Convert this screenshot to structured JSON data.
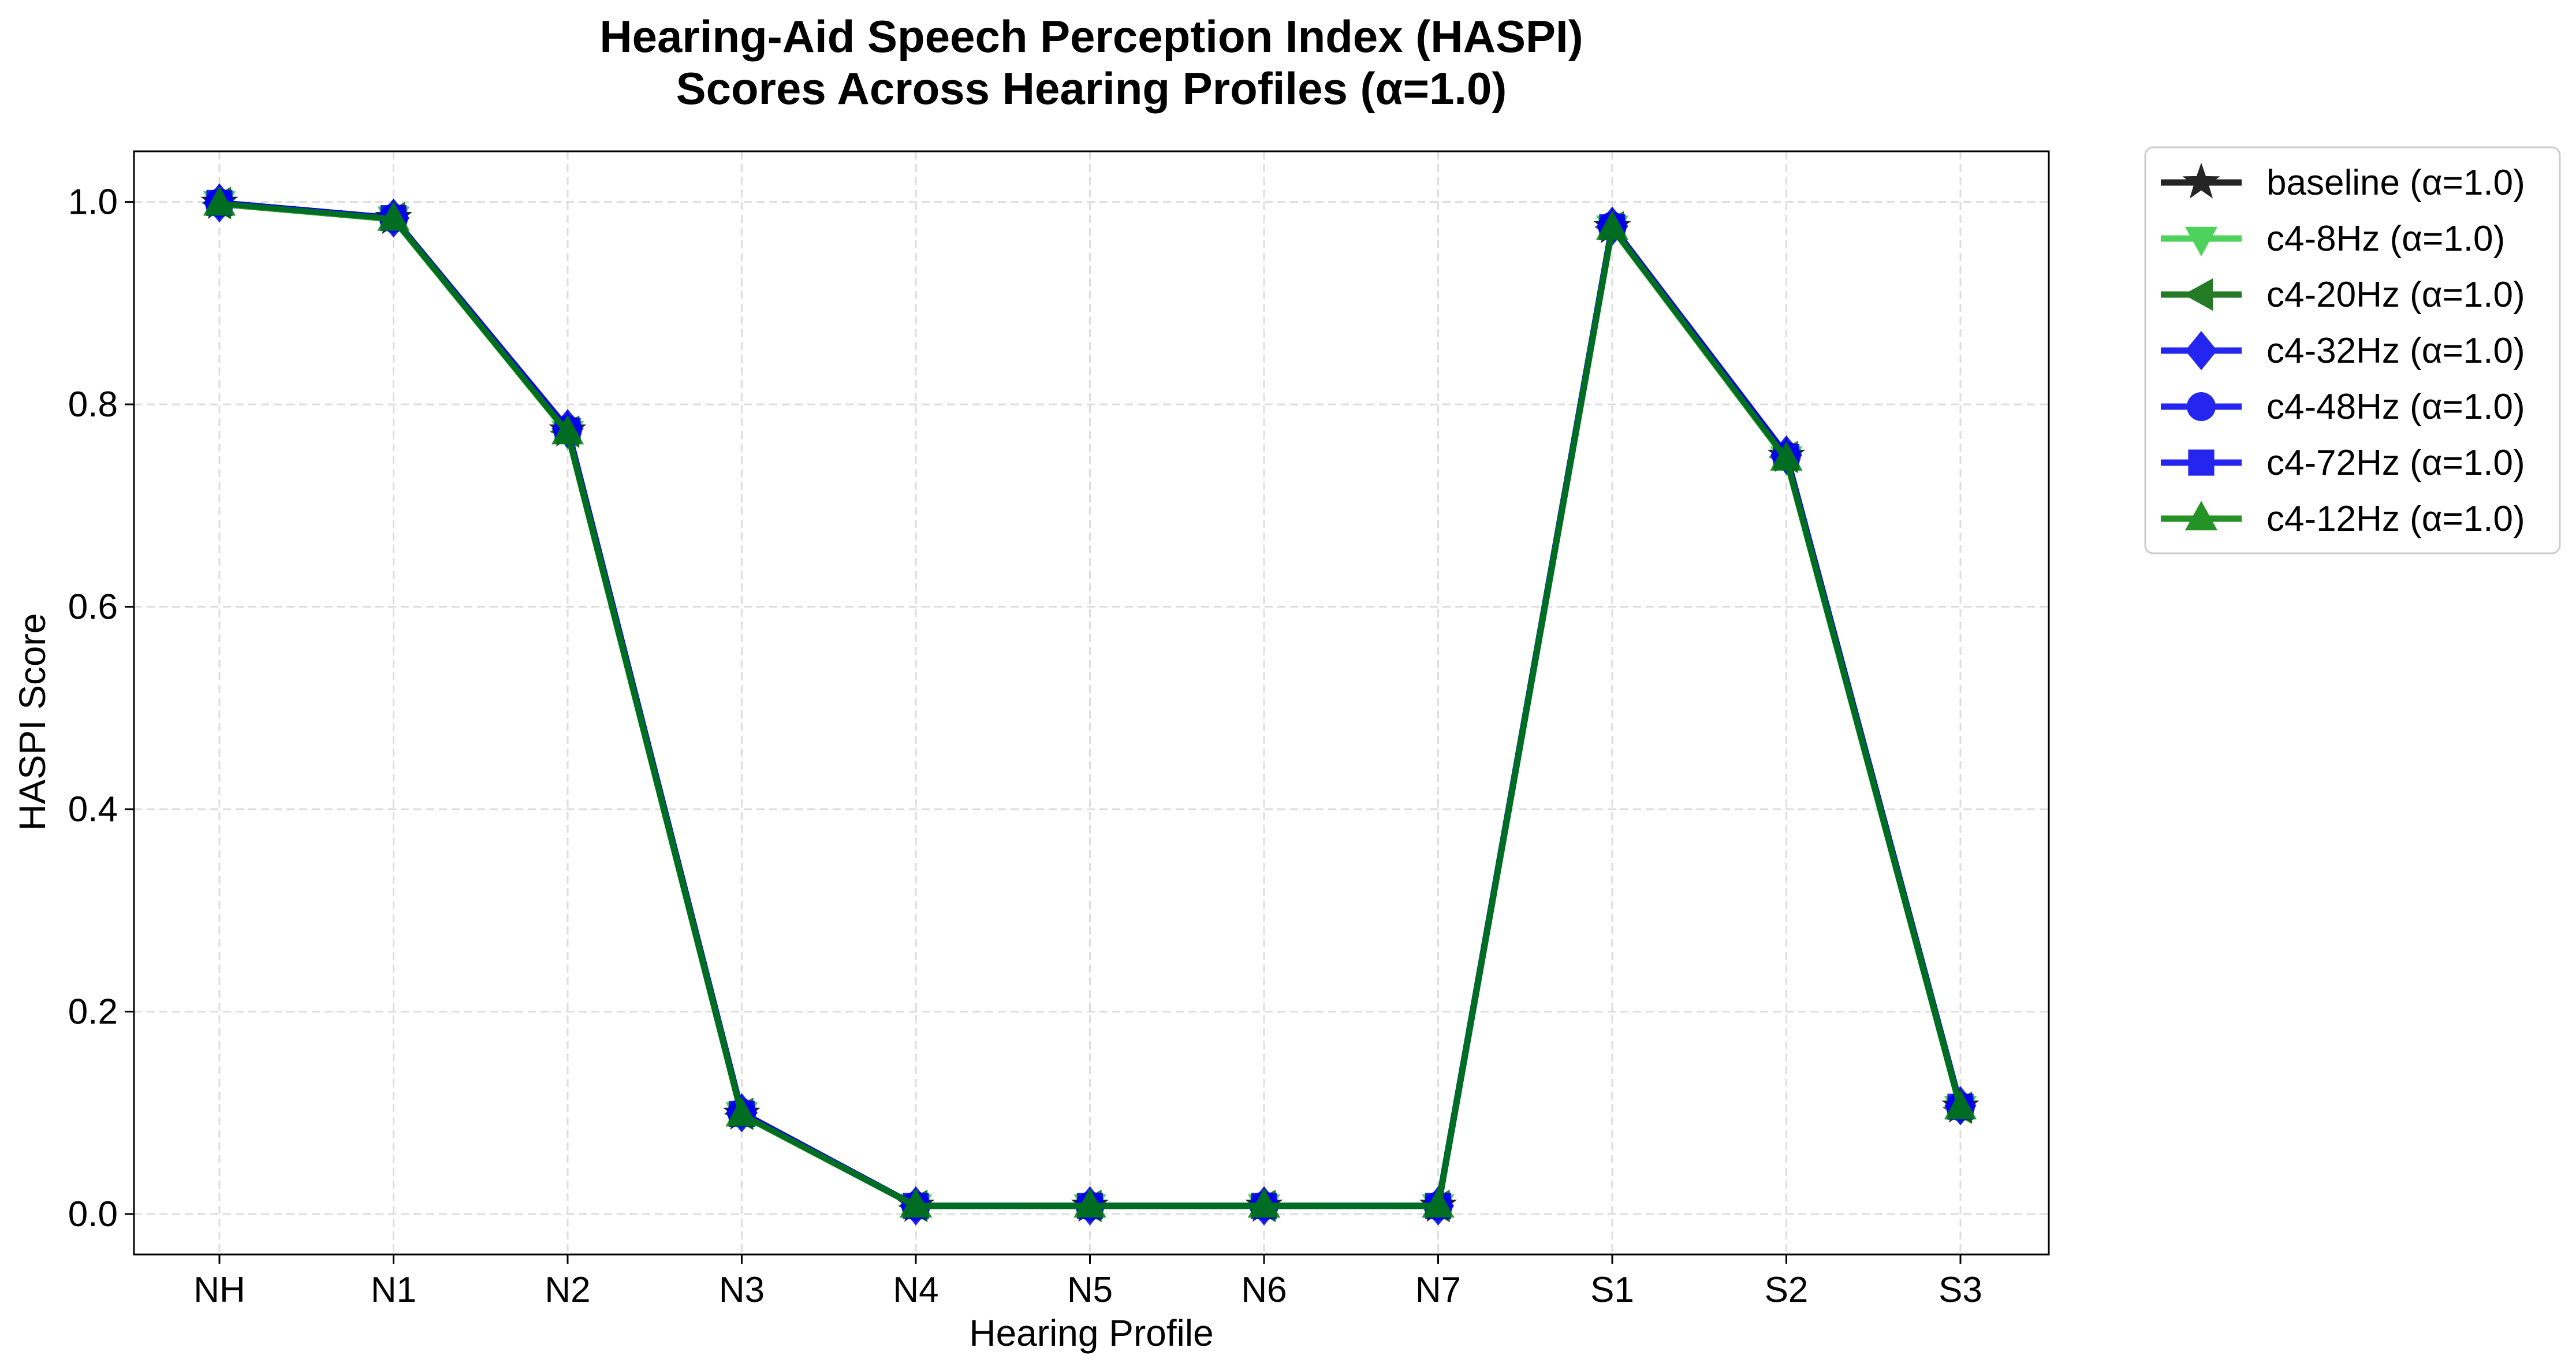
{
  "chart_data": {
    "type": "line",
    "title": "Hearing-Aid Speech Perception Index (HASPI)",
    "subtitle": "Scores Across Hearing Profiles (α=1.0)",
    "xlabel": "Hearing Profile",
    "ylabel": "HASPI Score",
    "categories": [
      "NH",
      "N1",
      "N2",
      "N3",
      "N4",
      "N5",
      "N6",
      "N7",
      "S1",
      "S2",
      "S3"
    ],
    "ylim": [
      -0.04,
      1.05
    ],
    "yticks": [
      0.0,
      0.2,
      0.4,
      0.6,
      0.8,
      1.0
    ],
    "ytick_labels": [
      "0.0",
      "0.2",
      "0.4",
      "0.6",
      "0.8",
      "1.0"
    ],
    "grid": true,
    "legend_position": "outside-top-right",
    "series": [
      {
        "name": "baseline (α=1.0)",
        "color": "#000000",
        "marker": "star",
        "values": [
          0.999,
          0.984,
          0.774,
          0.099,
          0.008,
          0.008,
          0.008,
          0.008,
          0.975,
          0.749,
          0.106
        ]
      },
      {
        "name": "c4-8Hz (α=1.0)",
        "color": "#2ecc40",
        "marker": "triangle-down",
        "values": [
          0.999,
          0.984,
          0.772,
          0.099,
          0.008,
          0.008,
          0.008,
          0.008,
          0.975,
          0.747,
          0.105
        ]
      },
      {
        "name": "c4-20Hz (α=1.0)",
        "color": "#006400",
        "marker": "triangle-left",
        "values": [
          0.999,
          0.984,
          0.773,
          0.099,
          0.008,
          0.008,
          0.008,
          0.008,
          0.975,
          0.748,
          0.105
        ]
      },
      {
        "name": "c4-32Hz (α=1.0)",
        "color": "#0000ee",
        "marker": "diamond",
        "values": [
          0.999,
          0.984,
          0.776,
          0.1,
          0.008,
          0.008,
          0.008,
          0.008,
          0.976,
          0.75,
          0.107
        ]
      },
      {
        "name": "c4-48Hz (α=1.0)",
        "color": "#0000ee",
        "marker": "circle",
        "values": [
          0.999,
          0.984,
          0.775,
          0.1,
          0.008,
          0.008,
          0.008,
          0.008,
          0.976,
          0.749,
          0.106
        ]
      },
      {
        "name": "c4-72Hz (α=1.0)",
        "color": "#0000ee",
        "marker": "square",
        "values": [
          0.999,
          0.984,
          0.774,
          0.099,
          0.008,
          0.008,
          0.008,
          0.008,
          0.975,
          0.748,
          0.106
        ]
      },
      {
        "name": "c4-12Hz (α=1.0)",
        "color": "#008000",
        "marker": "triangle-up",
        "values": [
          0.998,
          0.983,
          0.772,
          0.098,
          0.008,
          0.008,
          0.008,
          0.008,
          0.974,
          0.746,
          0.105
        ]
      }
    ]
  }
}
